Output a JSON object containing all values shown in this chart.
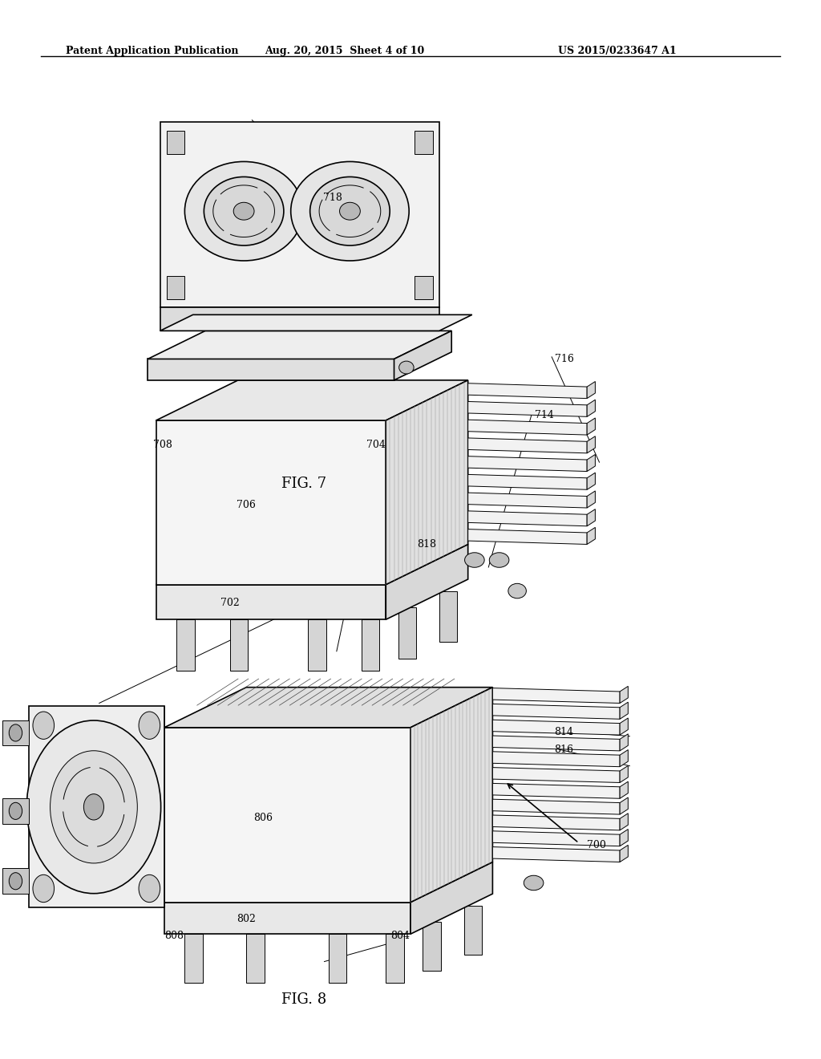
{
  "bg_color": "#ffffff",
  "line_color": "#000000",
  "header_left": "Patent Application Publication",
  "header_mid": "Aug. 20, 2015  Sheet 4 of 10",
  "header_right": "US 2015/0233647 A1",
  "fig7_label": "FIG. 7",
  "fig8_label": "FIG. 8"
}
